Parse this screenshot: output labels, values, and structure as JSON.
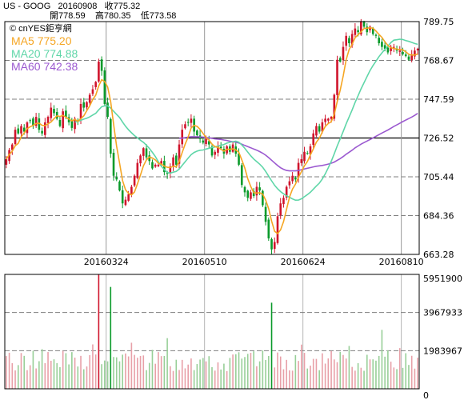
{
  "header": {
    "ticker": "US - GOOG",
    "date": "20160908",
    "close_label": "收",
    "close": "775.32",
    "open_label": "開",
    "open": "778.59",
    "high_label": "高",
    "high": "780.35",
    "low_label": "低",
    "low": "773.58"
  },
  "watermark": "© cnYES鉅亨網",
  "colors": {
    "ma5": "#f5a623",
    "ma20": "#5fd6a8",
    "ma60": "#9b59d0",
    "up": "#d0142c",
    "down": "#0a9a2a",
    "grid": "#7f7f7f"
  },
  "chart_data": [
    {
      "type": "candlestick",
      "title": "",
      "ylim": [
        663.28,
        789.75
      ],
      "y_ticks": [
        "789.75",
        "768.67",
        "747.59",
        "726.52",
        "705.44",
        "684.36",
        "663.28"
      ],
      "x_tick_labels": [
        "20160324",
        "20160510",
        "20160624",
        "20160810"
      ],
      "legend": [
        {
          "name": "MA5",
          "value": "775.20"
        },
        {
          "name": "MA20",
          "value": "774.88"
        },
        {
          "name": "MA60",
          "value": "742.38"
        }
      ],
      "close_series": [
        715,
        720,
        723,
        731,
        729,
        733,
        730,
        735,
        736,
        733,
        738,
        731,
        729,
        735,
        738,
        743,
        740,
        737,
        733,
        741,
        738,
        735,
        732,
        737,
        736,
        745,
        743,
        746,
        750,
        753,
        757,
        768,
        763,
        745,
        738,
        718,
        706,
        704,
        698,
        691,
        693,
        696,
        700,
        706,
        713,
        717,
        721,
        716,
        714,
        710,
        712,
        712,
        714,
        708,
        707,
        711,
        716,
        712,
        723,
        731,
        734,
        735,
        737,
        730,
        728,
        726,
        724,
        726,
        723,
        717,
        719,
        722,
        721,
        718,
        722,
        719,
        723,
        718,
        712,
        701,
        697,
        694,
        697,
        695,
        700,
        698,
        690,
        681,
        672,
        666,
        670,
        684,
        691,
        694,
        700,
        703,
        706,
        704,
        713,
        715,
        719,
        718,
        722,
        729,
        733,
        730,
        735,
        737,
        737,
        738,
        750,
        769,
        768,
        776,
        782,
        778,
        783,
        786,
        784,
        790,
        787,
        784,
        787,
        783,
        782,
        778,
        776,
        775,
        773,
        776,
        776,
        774,
        774,
        772,
        771,
        769,
        772,
        774,
        775
      ]
    },
    {
      "type": "bar",
      "title": "",
      "ylim": [
        0,
        5951900
      ],
      "y_ticks": [
        "5951900",
        "3967933",
        "1983967",
        "0"
      ],
      "peak_volumes": [
        {
          "date_index": 31,
          "volume": 5951900
        },
        {
          "date_index": 35,
          "volume": 5300000
        },
        {
          "date_index": 89,
          "volume": 4480000
        }
      ]
    }
  ]
}
